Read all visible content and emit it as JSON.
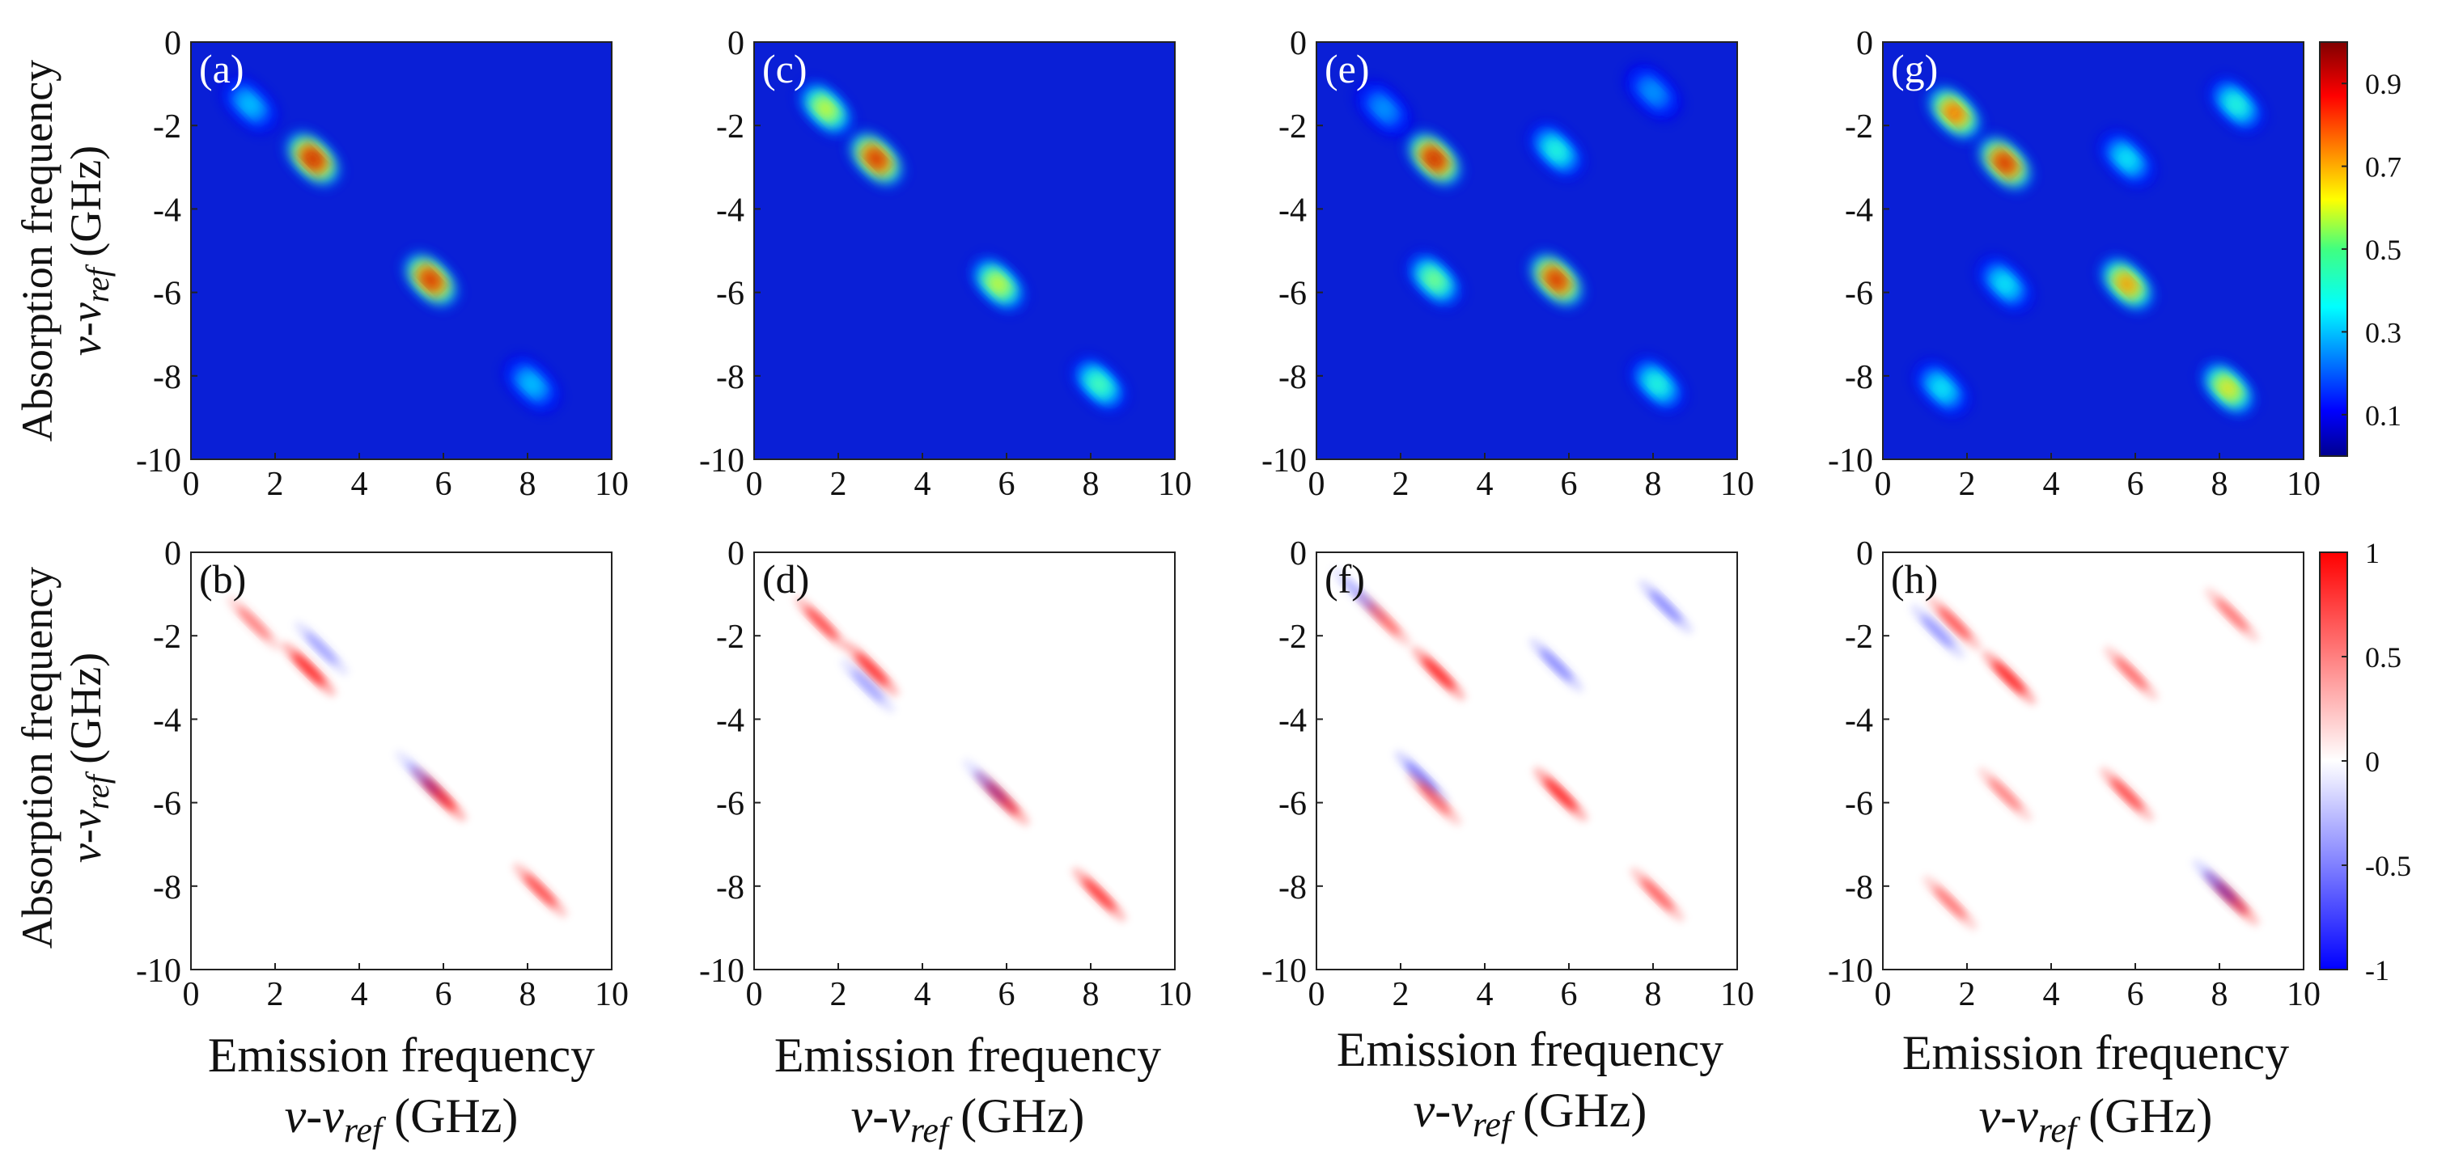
{
  "figure": {
    "ylabel": {
      "line1": "Absorption frequency",
      "var": "v-v",
      "sub": "ref",
      "unit": " (GHz)"
    },
    "xlabel": {
      "line1": "Emission frequency",
      "var": "v-v",
      "sub": "ref",
      "unit": " (GHz)"
    }
  },
  "chart_data": [
    {
      "type": "heatmap",
      "panel": "(a)",
      "colormap": "jet",
      "xlim": [
        0,
        10
      ],
      "ylim": [
        -10,
        0
      ],
      "xticks": [
        "0",
        "2",
        "4",
        "6",
        "8",
        "10"
      ],
      "yticks": [
        "0",
        "-2",
        "-4",
        "-6",
        "-8",
        "-10"
      ],
      "peaks": [
        {
          "x": 1.4,
          "y": -1.5,
          "v": 0.35
        },
        {
          "x": 2.9,
          "y": -2.8,
          "v": 1.0
        },
        {
          "x": 5.7,
          "y": -5.7,
          "v": 0.97
        },
        {
          "x": 8.1,
          "y": -8.2,
          "v": 0.35
        }
      ]
    },
    {
      "type": "heatmap",
      "panel": "(b)",
      "colormap": "bwr",
      "xlim": [
        0,
        10
      ],
      "ylim": [
        -10,
        0
      ],
      "xticks": [
        "0",
        "2",
        "4",
        "6",
        "8",
        "10"
      ],
      "yticks": [
        "0",
        "-2",
        "-4",
        "-6",
        "-8",
        "-10"
      ],
      "peaks": [
        {
          "x": 1.5,
          "y": -1.7,
          "v": 0.5
        },
        {
          "x": 2.8,
          "y": -2.8,
          "v": 0.95
        },
        {
          "x": 3.1,
          "y": -2.3,
          "v": -0.35
        },
        {
          "x": 5.9,
          "y": -5.8,
          "v": 0.95
        },
        {
          "x": 5.5,
          "y": -5.4,
          "v": -0.3
        },
        {
          "x": 8.3,
          "y": -8.1,
          "v": 0.75
        }
      ]
    },
    {
      "type": "heatmap",
      "panel": "(c)",
      "colormap": "jet",
      "xlim": [
        0,
        10
      ],
      "ylim": [
        -10,
        0
      ],
      "xticks": [
        "0",
        "2",
        "4",
        "6",
        "8",
        "10"
      ],
      "yticks": [
        "0",
        "-2",
        "-4",
        "-6",
        "-8",
        "-10"
      ],
      "peaks": [
        {
          "x": 1.7,
          "y": -1.6,
          "v": 0.65
        },
        {
          "x": 2.9,
          "y": -2.8,
          "v": 0.97
        },
        {
          "x": 5.8,
          "y": -5.8,
          "v": 0.65
        },
        {
          "x": 8.2,
          "y": -8.2,
          "v": 0.5
        }
      ]
    },
    {
      "type": "heatmap",
      "panel": "(d)",
      "colormap": "bwr",
      "xlim": [
        0,
        10
      ],
      "ylim": [
        -10,
        0
      ],
      "xticks": [
        "0",
        "2",
        "4",
        "6",
        "8",
        "10"
      ],
      "yticks": [
        "0",
        "-2",
        "-4",
        "-6",
        "-8",
        "-10"
      ],
      "peaks": [
        {
          "x": 1.6,
          "y": -1.7,
          "v": 0.75
        },
        {
          "x": 2.8,
          "y": -2.8,
          "v": 0.9
        },
        {
          "x": 2.7,
          "y": -3.2,
          "v": -0.35
        },
        {
          "x": 5.9,
          "y": -5.9,
          "v": 0.85
        },
        {
          "x": 5.6,
          "y": -5.6,
          "v": -0.3
        },
        {
          "x": 8.2,
          "y": -8.2,
          "v": 0.85
        }
      ]
    },
    {
      "type": "heatmap",
      "panel": "(e)",
      "colormap": "jet",
      "xlim": [
        0,
        10
      ],
      "ylim": [
        -10,
        0
      ],
      "xticks": [
        "0",
        "2",
        "4",
        "6",
        "8",
        "10"
      ],
      "yticks": [
        "0",
        "-2",
        "-4",
        "-6",
        "-8",
        "-10"
      ],
      "peaks": [
        {
          "x": 1.6,
          "y": -1.6,
          "v": 0.3
        },
        {
          "x": 2.8,
          "y": -2.8,
          "v": 1.0
        },
        {
          "x": 5.7,
          "y": -2.6,
          "v": 0.45
        },
        {
          "x": 8.0,
          "y": -1.2,
          "v": 0.3
        },
        {
          "x": 2.8,
          "y": -5.7,
          "v": 0.55
        },
        {
          "x": 5.7,
          "y": -5.7,
          "v": 0.97
        },
        {
          "x": 8.1,
          "y": -8.2,
          "v": 0.45
        }
      ]
    },
    {
      "type": "heatmap",
      "panel": "(f)",
      "colormap": "bwr",
      "xlim": [
        0,
        10
      ],
      "ylim": [
        -10,
        0
      ],
      "xticks": [
        "0",
        "2",
        "4",
        "6",
        "8",
        "10"
      ],
      "yticks": [
        "0",
        "-2",
        "-4",
        "-6",
        "-8",
        "-10"
      ],
      "peaks": [
        {
          "x": 1.6,
          "y": -1.6,
          "v": 0.6
        },
        {
          "x": 2.9,
          "y": -2.9,
          "v": 0.95
        },
        {
          "x": 5.7,
          "y": -2.7,
          "v": -0.45
        },
        {
          "x": 8.3,
          "y": -1.3,
          "v": -0.45
        },
        {
          "x": 2.5,
          "y": -5.4,
          "v": -0.5
        },
        {
          "x": 2.8,
          "y": -5.9,
          "v": 0.6
        },
        {
          "x": 5.8,
          "y": -5.8,
          "v": 0.95
        },
        {
          "x": 8.1,
          "y": -8.2,
          "v": 0.65
        },
        {
          "x": 1.0,
          "y": -1.0,
          "v": -0.3
        }
      ]
    },
    {
      "type": "heatmap",
      "panel": "(g)",
      "colormap": "jet",
      "xlim": [
        0,
        10
      ],
      "ylim": [
        -10,
        0
      ],
      "xticks": [
        "0",
        "2",
        "4",
        "6",
        "8",
        "10"
      ],
      "yticks": [
        "0",
        "-2",
        "-4",
        "-6",
        "-8",
        "-10"
      ],
      "peaks": [
        {
          "x": 1.7,
          "y": -1.7,
          "v": 0.85
        },
        {
          "x": 2.9,
          "y": -2.9,
          "v": 0.97
        },
        {
          "x": 5.8,
          "y": -2.8,
          "v": 0.4
        },
        {
          "x": 8.4,
          "y": -1.5,
          "v": 0.45
        },
        {
          "x": 2.9,
          "y": -5.8,
          "v": 0.4
        },
        {
          "x": 5.8,
          "y": -5.8,
          "v": 0.8
        },
        {
          "x": 1.4,
          "y": -8.3,
          "v": 0.4
        },
        {
          "x": 8.2,
          "y": -8.3,
          "v": 0.7
        }
      ]
    },
    {
      "type": "heatmap",
      "panel": "(h)",
      "colormap": "bwr",
      "xlim": [
        0,
        10
      ],
      "ylim": [
        -10,
        0
      ],
      "xticks": [
        "0",
        "2",
        "4",
        "6",
        "8",
        "10"
      ],
      "yticks": [
        "0",
        "-2",
        "-4",
        "-6",
        "-8",
        "-10"
      ],
      "peaks": [
        {
          "x": 1.7,
          "y": -1.7,
          "v": 0.7
        },
        {
          "x": 1.3,
          "y": -1.9,
          "v": -0.4
        },
        {
          "x": 3.0,
          "y": -3.0,
          "v": 0.97
        },
        {
          "x": 5.9,
          "y": -2.9,
          "v": 0.6
        },
        {
          "x": 8.3,
          "y": -1.5,
          "v": 0.55
        },
        {
          "x": 2.9,
          "y": -5.8,
          "v": 0.5
        },
        {
          "x": 5.8,
          "y": -5.8,
          "v": 0.75
        },
        {
          "x": 1.6,
          "y": -8.4,
          "v": 0.55
        },
        {
          "x": 8.3,
          "y": -8.3,
          "v": 0.8
        },
        {
          "x": 8.0,
          "y": -8.0,
          "v": -0.4
        }
      ]
    }
  ],
  "colorbars": [
    {
      "colormap": "jet",
      "range": [
        0,
        1
      ],
      "ticks": [
        {
          "label": "0.9",
          "v": 0.9
        },
        {
          "label": "0.7",
          "v": 0.7
        },
        {
          "label": "0.5",
          "v": 0.5
        },
        {
          "label": "0.3",
          "v": 0.3
        },
        {
          "label": "0.1",
          "v": 0.1
        }
      ]
    },
    {
      "colormap": "bwr",
      "range": [
        -1,
        1
      ],
      "ticks": [
        {
          "label": "1",
          "v": 1
        },
        {
          "label": "0.5",
          "v": 0.5
        },
        {
          "label": "0",
          "v": 0
        },
        {
          "label": "-0.5",
          "v": -0.5
        },
        {
          "label": "-1",
          "v": -1
        }
      ]
    }
  ]
}
